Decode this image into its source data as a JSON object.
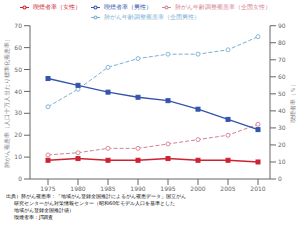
{
  "chart_data": {
    "type": "line",
    "x": [
      1975,
      1980,
      1985,
      1990,
      1995,
      2000,
      2005,
      2010
    ],
    "xlim": [
      1972,
      2012
    ],
    "xticks": [
      1975,
      1980,
      1985,
      1990,
      1995,
      2000,
      2005,
      2010
    ],
    "ylim": [
      0,
      70
    ],
    "yticks": [
      0,
      10,
      20,
      30,
      40,
      50,
      60,
      70
    ],
    "y2lim": [
      0,
      90
    ],
    "y2ticks": [
      0,
      10,
      20,
      30,
      40,
      50,
      60,
      70,
      80,
      90
    ],
    "y_label": "肺がん罹患率（人口十万人当たり標準化罹患率）",
    "y2_label": "喫煙者率（％）",
    "grid": false,
    "legend": "top",
    "series": [
      {
        "name": "肺がん年齢調整罹患率（全国男性）",
        "color": "#7ab0d4",
        "values": [
          33,
          41,
          51,
          55,
          57,
          57,
          59,
          65
        ],
        "axis": "y",
        "marker": "circle",
        "line_style": "dashed"
      },
      {
        "name": "肺がん年齢調整罹患率（全国女性）",
        "color": "#d48090",
        "values": [
          11,
          12,
          14,
          14,
          16,
          18,
          20,
          25
        ],
        "axis": "y",
        "marker": "circle",
        "line_style": "dashed"
      },
      {
        "name": "喫煙者率（男性）",
        "color": "#3355aa",
        "values": [
          59,
          55,
          51,
          48,
          46,
          41,
          35,
          29
        ],
        "axis": "y2",
        "marker": "square",
        "line_style": "solid"
      },
      {
        "name": "喫煙者率（女性）",
        "color": "#cc2233",
        "values": [
          11,
          12,
          11,
          11,
          12,
          11,
          11,
          10
        ],
        "axis": "y2",
        "marker": "square",
        "line_style": "solid"
      }
    ],
    "annotations": [
      "出典）肺がん罹患率：「地域がん登録全国推計によるがん罹患データ」国立がん",
      "     研究センターがん対策情報センター（昭和60年モデル人口を基準とした",
      "     地域がん登録全国推計値）",
      "     喫煙者率：JT調査"
    ]
  }
}
